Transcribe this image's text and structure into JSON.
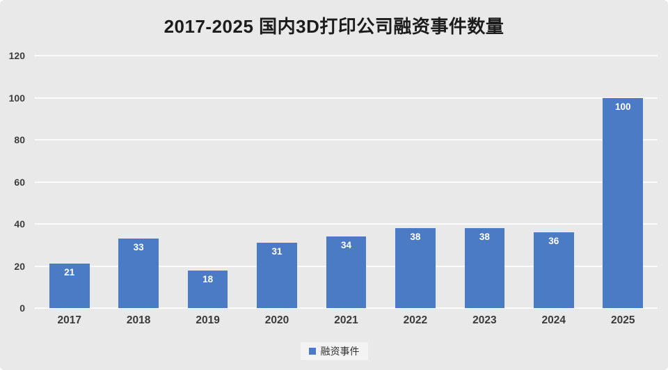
{
  "chart_data": {
    "type": "bar",
    "title": "2017-2025 国内3D打印公司融资事件数量",
    "categories": [
      "2017",
      "2018",
      "2019",
      "2020",
      "2021",
      "2022",
      "2023",
      "2024",
      "2025"
    ],
    "series": [
      {
        "name": "融资事件",
        "values": [
          21,
          33,
          18,
          31,
          34,
          38,
          38,
          36,
          100
        ]
      }
    ],
    "ylim": [
      0,
      120
    ],
    "yticks": [
      0,
      20,
      40,
      60,
      80,
      100,
      120
    ],
    "grid": true,
    "legend_position": "bottom",
    "colors": {
      "bar": "#4C7BC6",
      "bar_label": "#ffffff",
      "background": "#E9E9E9",
      "gridline": "#fcfcfc",
      "title_text": "#1c1c1c",
      "axis_text": "#3d3d3d"
    }
  }
}
